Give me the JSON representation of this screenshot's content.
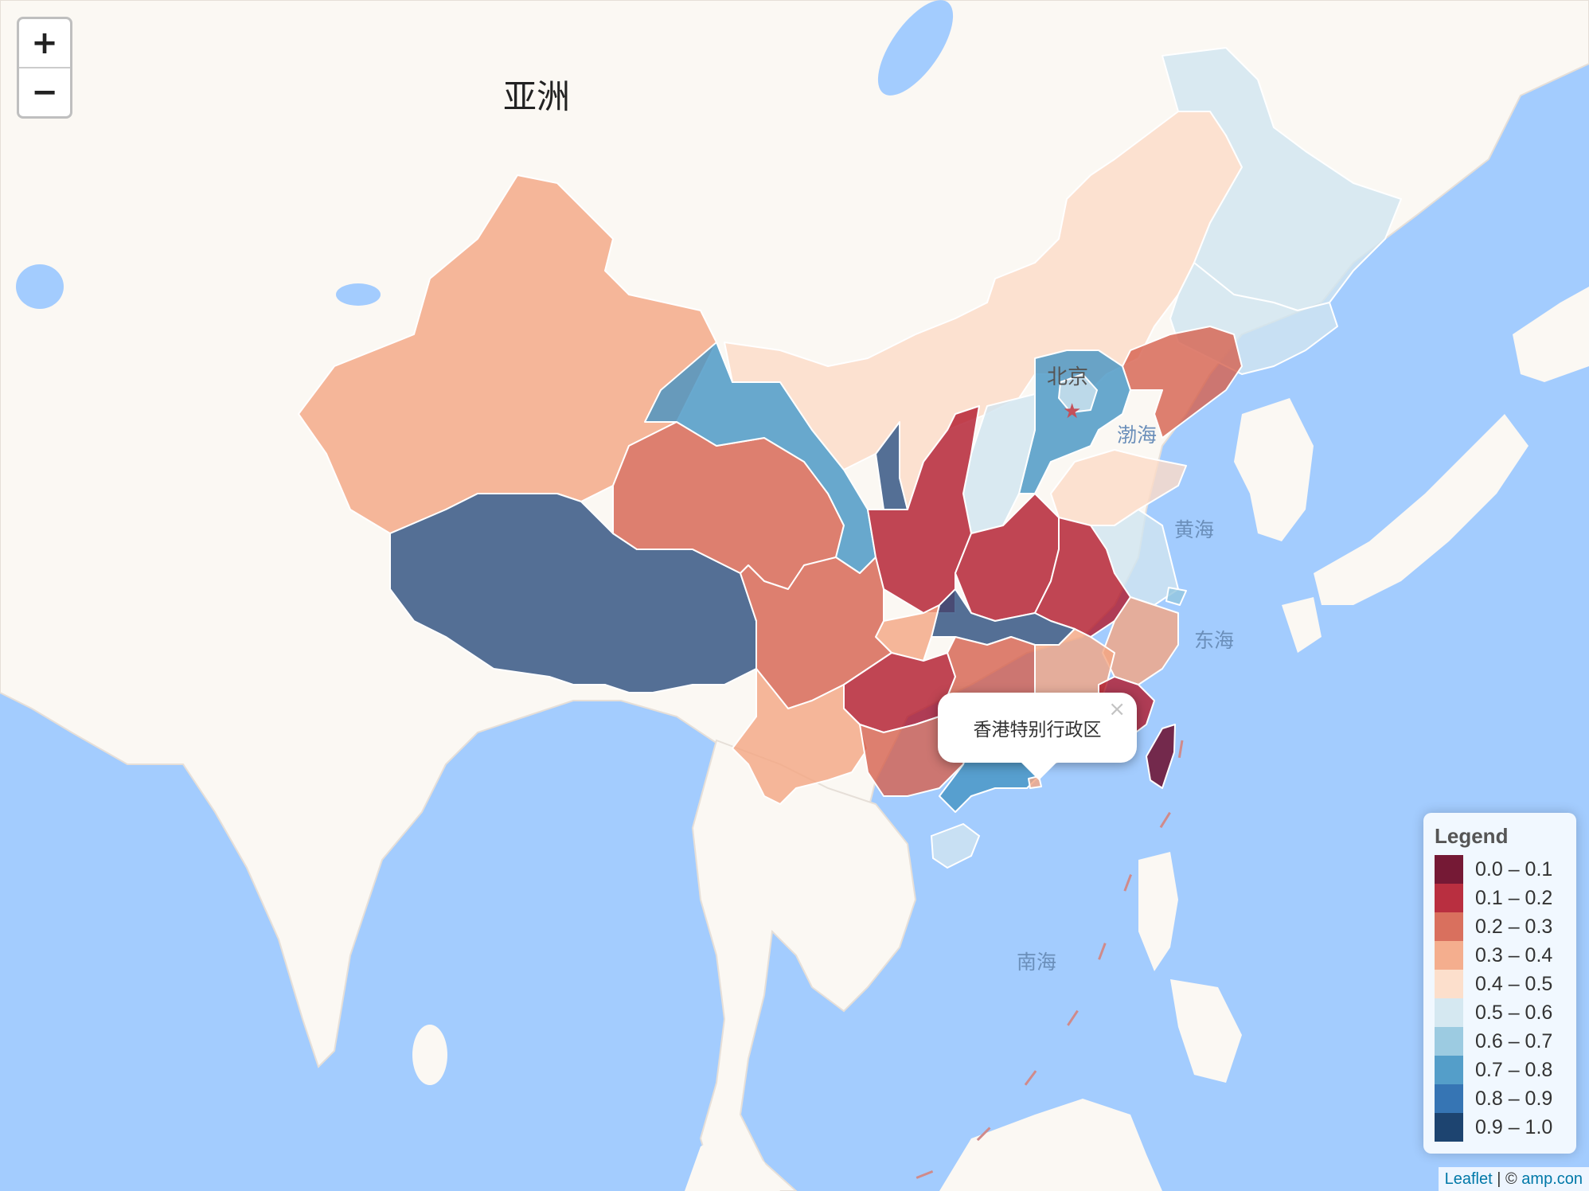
{
  "map": {
    "continent_label": "亚洲",
    "city_labels": {
      "beijing": "北京"
    },
    "sea_labels": {
      "bohai": "渤海",
      "yellow": "黄海",
      "east": "东海",
      "south": "南海"
    }
  },
  "zoom": {
    "in_label": "+",
    "out_label": "−"
  },
  "popup": {
    "text": "香港特别行政区",
    "close_label": "×"
  },
  "legend": {
    "title": "Legend",
    "items": [
      {
        "label": "0.0 – 0.1",
        "color": "#67001f"
      },
      {
        "label": "0.1 – 0.2",
        "color": "#b2182b"
      },
      {
        "label": "0.2 – 0.3",
        "color": "#d6604d"
      },
      {
        "label": "0.3 – 0.4",
        "color": "#f4a582"
      },
      {
        "label": "0.4 – 0.5",
        "color": "#fddbc7"
      },
      {
        "label": "0.5 – 0.6",
        "color": "#d1e5f0"
      },
      {
        "label": "0.6 – 0.7",
        "color": "#92c5de"
      },
      {
        "label": "0.7 – 0.8",
        "color": "#4393c3"
      },
      {
        "label": "0.8 – 0.9",
        "color": "#2166ac"
      },
      {
        "label": "0.9 – 1.0",
        "color": "#053061"
      }
    ]
  },
  "attribution": {
    "leaflet": "Leaflet",
    "separator": " | © ",
    "provider": "amp.con"
  },
  "colors": {
    "sea": "#a3ccfe",
    "land": "#fbf8f3",
    "border": "#c9c2bd"
  }
}
